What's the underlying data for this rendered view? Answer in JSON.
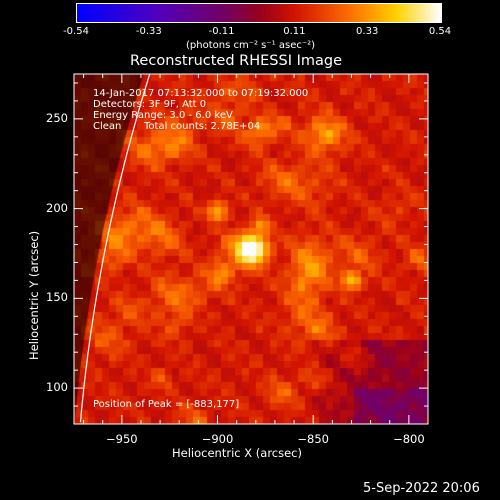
{
  "colors": {
    "background": "#000000",
    "foreground": "#ffffff",
    "limb": "#ffffff"
  },
  "colorbar": {
    "ticks": [
      "-0.54",
      "-0.33",
      "-0.11",
      "0.11",
      "0.33",
      "0.54"
    ],
    "range": [
      -0.54,
      0.54
    ],
    "unit": "(photons cm⁻² s⁻¹ asec⁻²)"
  },
  "chart_data": {
    "type": "heatmap",
    "title": "Reconstructed RHESSI Image",
    "xlabel": "Heliocentric X (arcsec)",
    "ylabel": "Heliocentric Y (arcsec)",
    "xlim": [
      -975,
      -790
    ],
    "ylim": [
      80,
      275
    ],
    "xticks": [
      -950,
      -900,
      -850,
      -800
    ],
    "yticks": [
      100,
      150,
      200,
      250
    ],
    "peak": {
      "x": -883,
      "y": 177,
      "value": 0.54
    },
    "secondary_sources": [
      {
        "x": -830,
        "y": 160,
        "value": 0.3
      },
      {
        "x": -900,
        "y": 198,
        "value": 0.28
      },
      {
        "x": -877,
        "y": 190,
        "value": 0.25
      }
    ],
    "annotations": {
      "time_range": "14-Jan-2017 07:13:32.000 to 07:19:32.000",
      "detectors": "Detectors: 3F 9F, Att 0",
      "energy": "Energy Range: 3.0 - 6.0 keV",
      "method": "Clean",
      "counts": "Total counts: 2.78E+04",
      "peak_position": "Position of Peak = [-883,177]"
    }
  },
  "footer": {
    "timestamp": "5-Sep-2022 20:06"
  }
}
